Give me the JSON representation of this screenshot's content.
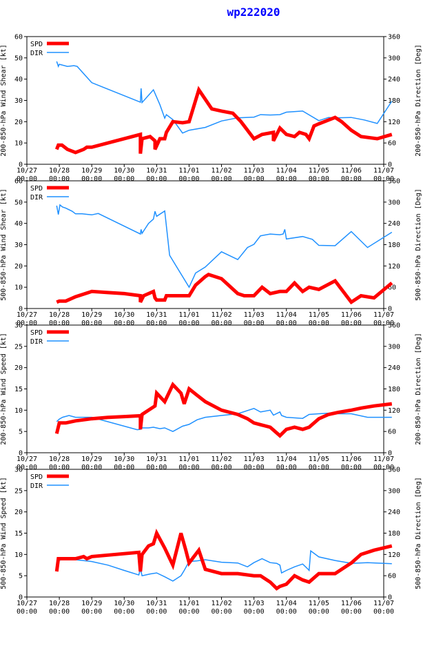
{
  "title": "wp222020",
  "x_ticks": [
    "10/27",
    "10/28",
    "10/29",
    "10/30",
    "10/31",
    "11/01",
    "11/02",
    "11/03",
    "11/04",
    "11/05",
    "11/06",
    "11/07"
  ],
  "x_ticks_time": "00:00",
  "legend": {
    "spd": "SPD",
    "dir": "DIR"
  },
  "colors": {
    "spd": "#ff0000",
    "dir": "#1e90ff",
    "axis": "#000000"
  },
  "chart_data": [
    {
      "type": "line",
      "ylabel_left": "200-850-hPa Wind Shear [kt]",
      "ylabel_right": "200-850-hPa Direction [Deg]",
      "ylim_left": [
        0,
        60
      ],
      "yticks_left": [
        0,
        10,
        20,
        30,
        40,
        50,
        60
      ],
      "ylim_right": [
        0,
        360
      ],
      "yticks_right": [
        0,
        60,
        120,
        180,
        240,
        300,
        360
      ],
      "series": [
        {
          "name": "SPD",
          "axis": "left",
          "x": [
            0.92,
            0.97,
            1.08,
            1.25,
            1.5,
            1.75,
            1.85,
            2.0,
            3.5,
            3.5,
            3.55,
            3.8,
            3.95,
            3.95,
            4.1,
            4.25,
            4.3,
            4.5,
            4.8,
            5.0,
            5.3,
            5.7,
            6.0,
            6.35,
            6.6,
            7.0,
            7.25,
            7.6,
            7.6,
            7.8,
            8.0,
            8.25,
            8.4,
            8.6,
            8.7,
            8.85,
            9.0,
            9.5,
            9.7,
            10.0,
            10.3,
            10.8,
            11.25
          ],
          "y": [
            7,
            9,
            9,
            7,
            5.5,
            7,
            8,
            8,
            14,
            5,
            12,
            13,
            11,
            7,
            12,
            12,
            15,
            20,
            19.5,
            20,
            35,
            26,
            25,
            24,
            20,
            12,
            14,
            15,
            11,
            17,
            14,
            13,
            15,
            14,
            12,
            18,
            19,
            22,
            20,
            16,
            13,
            12,
            14
          ]
        },
        {
          "name": "DIR",
          "axis": "right",
          "x": [
            0.92,
            0.97,
            1.0,
            1.25,
            1.45,
            1.55,
            2.0,
            3.5,
            3.52,
            3.55,
            3.9,
            4.1,
            4.25,
            4.3,
            4.5,
            4.8,
            5.0,
            5.5,
            6.0,
            6.5,
            7.0,
            7.2,
            7.5,
            7.8,
            8.0,
            8.5,
            9.0,
            9.3,
            9.5,
            10.0,
            10.4,
            10.8,
            11.25
          ],
          "y": [
            290,
            276,
            282,
            276,
            278,
            276,
            230,
            175,
            214,
            174,
            210,
            168,
            130,
            140,
            126,
            88,
            96,
            104,
            122,
            131,
            133,
            140,
            139,
            140,
            147,
            150,
            123,
            132,
            131,
            132,
            125,
            115,
            178
          ]
        }
      ]
    },
    {
      "type": "line",
      "ylabel_left": "500-850-hPa Wind Shear [kt]",
      "ylabel_right": "500-850-hPa Direction [Deg]",
      "ylim_left": [
        0,
        60
      ],
      "yticks_left": [
        0,
        10,
        20,
        30,
        40,
        50,
        60
      ],
      "ylim_right": [
        0,
        360
      ],
      "yticks_right": [
        0,
        60,
        120,
        180,
        240,
        300,
        360
      ],
      "series": [
        {
          "name": "SPD",
          "axis": "left",
          "x": [
            0.92,
            1.0,
            1.2,
            1.5,
            1.8,
            2.0,
            2.5,
            3.0,
            3.5,
            3.5,
            3.6,
            3.9,
            3.95,
            4.0,
            4.25,
            4.3,
            4.5,
            5.0,
            5.2,
            5.5,
            5.6,
            6.0,
            6.5,
            6.7,
            7.0,
            7.25,
            7.5,
            7.8,
            8.0,
            8.25,
            8.5,
            8.7,
            9.0,
            9.5,
            10.0,
            10.3,
            10.7,
            11.25
          ],
          "y": [
            3,
            3.5,
            3.5,
            5.5,
            7,
            8,
            7.5,
            7,
            6,
            3,
            6,
            8,
            5,
            4,
            4,
            6,
            6,
            6,
            11,
            15,
            16,
            14,
            7,
            6,
            6,
            10,
            7,
            8,
            8,
            12,
            8,
            10,
            9,
            13,
            3,
            6,
            5,
            12
          ]
        },
        {
          "name": "DIR",
          "axis": "right",
          "x": [
            0.92,
            0.97,
            1.02,
            1.1,
            1.2,
            1.4,
            1.5,
            1.7,
            2.0,
            2.2,
            3.5,
            3.52,
            3.55,
            3.75,
            3.9,
            3.95,
            4.0,
            4.25,
            4.4,
            5.0,
            5.2,
            5.5,
            6.0,
            6.5,
            6.8,
            7.0,
            7.2,
            7.5,
            7.8,
            7.9,
            7.95,
            8.0,
            8.5,
            8.8,
            9.0,
            9.5,
            10.0,
            10.5,
            11.25
          ],
          "y": [
            290,
            265,
            292,
            286,
            283,
            274,
            267,
            267,
            264,
            268,
            210,
            223,
            212,
            240,
            252,
            274,
            260,
            275,
            150,
            60,
            100,
            117,
            160,
            138,
            172,
            181,
            205,
            210,
            208,
            210,
            223,
            196,
            203,
            195,
            178,
            177,
            217,
            172,
            215
          ]
        }
      ]
    },
    {
      "type": "line",
      "ylabel_left": "200-850-hPa Wind Speed [kt]",
      "ylabel_right": "200-850-hPa Direction [Deg]",
      "ylim_left": [
        0,
        30
      ],
      "yticks_left": [
        0,
        5,
        10,
        15,
        20,
        25,
        30
      ],
      "ylim_right": [
        0,
        360
      ],
      "yticks_right": [
        0,
        60,
        120,
        180,
        240,
        300,
        360
      ],
      "series": [
        {
          "name": "SPD",
          "axis": "left",
          "x": [
            0.92,
            1.0,
            1.2,
            1.5,
            2.0,
            2.5,
            3.0,
            3.5,
            3.5,
            3.55,
            3.75,
            3.95,
            4.0,
            4.25,
            4.5,
            4.75,
            4.85,
            5.0,
            5.25,
            5.5,
            6.0,
            6.5,
            6.8,
            7.0,
            7.25,
            7.5,
            7.8,
            8.0,
            8.25,
            8.5,
            8.7,
            9.0,
            9.3,
            9.6,
            10.0,
            10.3,
            10.7,
            11.25
          ],
          "y": [
            4.5,
            7,
            7,
            7.5,
            8,
            8.3,
            8.5,
            8.7,
            5.5,
            9,
            10,
            11,
            14,
            12,
            16,
            14,
            11.5,
            15,
            13.5,
            12,
            10,
            9,
            8,
            7,
            6.5,
            6,
            4,
            5.5,
            6,
            5.5,
            6,
            8,
            9,
            9.5,
            10,
            10.5,
            11,
            11.5
          ]
        },
        {
          "name": "DIR",
          "axis": "right",
          "x": [
            0.92,
            1.0,
            1.1,
            1.3,
            1.5,
            2.0,
            3.4,
            3.5,
            3.52,
            3.55,
            3.75,
            3.9,
            4.1,
            4.25,
            4.5,
            4.8,
            5.0,
            5.25,
            5.5,
            6.0,
            6.5,
            7.0,
            7.2,
            7.5,
            7.6,
            7.8,
            7.85,
            8.0,
            8.5,
            8.7,
            9.0,
            9.4,
            9.6,
            10.0,
            10.5,
            11.25
          ],
          "y": [
            88,
            95,
            100,
            105,
            100,
            100,
            65,
            66,
            85,
            70,
            70,
            72,
            68,
            70,
            60,
            75,
            80,
            93,
            100,
            105,
            110,
            125,
            115,
            120,
            106,
            115,
            105,
            100,
            97,
            108,
            110,
            112,
            110,
            110,
            100,
            100
          ]
        }
      ]
    },
    {
      "type": "line",
      "ylabel_left": "500-850-hPa Wind Speed [kt]",
      "ylabel_right": "500-850-hPa Direction [Deg]",
      "ylim_left": [
        0,
        30
      ],
      "yticks_left": [
        0,
        5,
        10,
        15,
        20,
        25,
        30
      ],
      "ylim_right": [
        0,
        360
      ],
      "yticks_right": [
        0,
        60,
        120,
        180,
        240,
        300,
        360
      ],
      "series": [
        {
          "name": "SPD",
          "axis": "left",
          "x": [
            0.92,
            0.97,
            1.0,
            1.3,
            1.5,
            1.75,
            1.85,
            2.0,
            3.45,
            3.5,
            3.55,
            3.75,
            3.9,
            4.0,
            4.25,
            4.5,
            4.75,
            4.9,
            5.0,
            5.3,
            5.5,
            6.0,
            6.5,
            7.0,
            7.2,
            7.5,
            7.7,
            7.8,
            8.0,
            8.25,
            8.5,
            8.7,
            9.0,
            9.5,
            10.0,
            10.3,
            10.7,
            11.25
          ],
          "y": [
            6,
            9,
            9,
            9,
            9,
            9.5,
            9,
            9.5,
            10.5,
            6,
            10,
            12,
            12.5,
            15,
            11.5,
            7.5,
            15,
            11,
            8,
            11,
            6.5,
            5.5,
            5.5,
            5,
            5,
            3.5,
            2,
            2.5,
            3,
            5,
            4,
            3.5,
            5.5,
            5.5,
            8,
            10,
            11,
            12
          ]
        },
        {
          "name": "DIR",
          "axis": "right",
          "x": [
            0.92,
            1.0,
            1.25,
            1.5,
            2.0,
            2.5,
            3.0,
            3.45,
            3.5,
            3.55,
            3.8,
            4.0,
            4.25,
            4.5,
            4.75,
            4.85,
            5.0,
            5.25,
            5.5,
            6.0,
            6.5,
            6.8,
            7.0,
            7.25,
            7.5,
            7.7,
            7.8,
            7.85,
            8.0,
            8.25,
            8.5,
            8.65,
            8.7,
            8.75,
            9.0,
            9.5,
            10.0,
            10.5,
            11.25
          ],
          "y": [
            100,
            104,
            107,
            105,
            100,
            90,
            75,
            62,
            80,
            60,
            65,
            68,
            57,
            45,
            60,
            75,
            100,
            102,
            105,
            98,
            96,
            85,
            97,
            108,
            97,
            95,
            90,
            68,
            75,
            85,
            93,
            80,
            75,
            130,
            113,
            103,
            95,
            97,
            94
          ]
        }
      ]
    }
  ]
}
